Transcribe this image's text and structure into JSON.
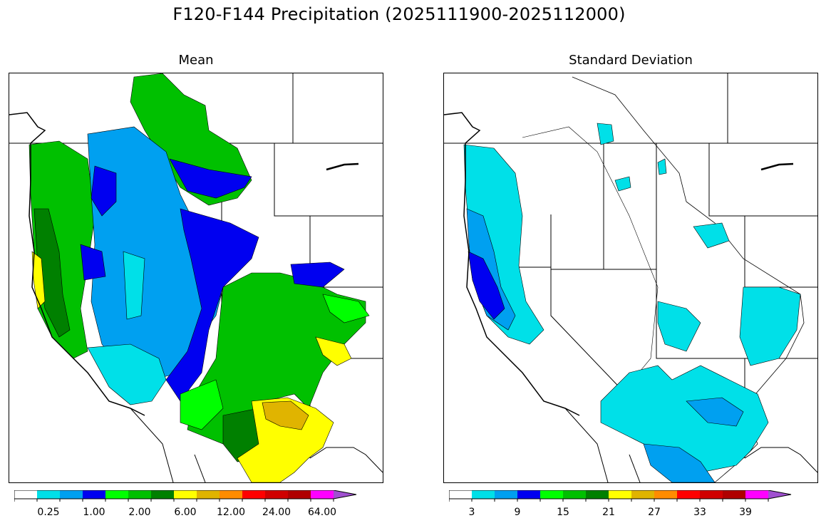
{
  "figure": {
    "title": "F120-F144 Precipitation (2025111900-2025112000)"
  },
  "panels": [
    {
      "id": "mean",
      "title": "Mean",
      "colorbar": {
        "colors": [
          "#ffffff",
          "#00e0e8",
          "#00a0f0",
          "#0000f0",
          "#00ff00",
          "#00c000",
          "#008000",
          "#ffff00",
          "#e0b400",
          "#ff8c00",
          "#ff0000",
          "#d00000",
          "#b00000",
          "#ff00ff",
          "#a050d0"
        ],
        "tick_labels": [
          "0.25",
          "1.00",
          "2.00",
          "6.00",
          "12.00",
          "24.00",
          "64.00"
        ],
        "label_positions": [
          2,
          4,
          6,
          8,
          10,
          12,
          14
        ],
        "extend": "max"
      }
    },
    {
      "id": "std",
      "title": "Standard Deviation",
      "colorbar": {
        "colors": [
          "#ffffff",
          "#00e0e8",
          "#00a0f0",
          "#0000f0",
          "#00ff00",
          "#00c000",
          "#008000",
          "#ffff00",
          "#e0b400",
          "#ff8c00",
          "#ff0000",
          "#d00000",
          "#b00000",
          "#ff00ff",
          "#a050d0"
        ],
        "tick_labels": [
          "3",
          "9",
          "15",
          "21",
          "27",
          "33",
          "39"
        ],
        "label_positions": [
          1,
          3,
          5,
          7,
          9,
          11,
          13
        ],
        "extend": "max"
      }
    }
  ]
}
